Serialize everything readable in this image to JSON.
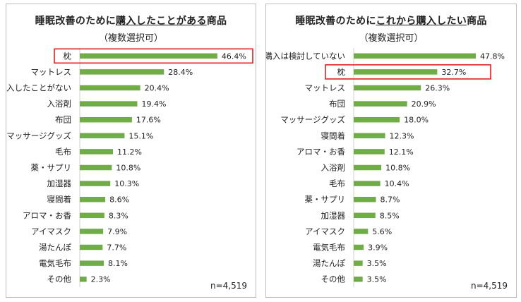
{
  "chart_data": [
    {
      "type": "bar",
      "orientation": "horizontal",
      "title_parts": [
        "睡眠改善のために",
        "購入したことがある",
        "商品"
      ],
      "subtitle": "（複数選択可）",
      "categories": [
        "枕",
        "マットレス",
        "購入したことがない",
        "入浴剤",
        "布団",
        "マッサージグッズ",
        "毛布",
        "薬・サプリ",
        "加湿器",
        "寝間着",
        "アロマ・お香",
        "アイマスク",
        "湯たんぽ",
        "電気毛布",
        "その他"
      ],
      "values": [
        46.4,
        28.4,
        20.4,
        19.4,
        17.6,
        15.1,
        11.2,
        10.8,
        10.3,
        8.6,
        8.3,
        7.9,
        7.7,
        8.1,
        2.3
      ],
      "value_labels": [
        "46.4%",
        "28.4%",
        "20.4%",
        "19.4%",
        "17.6%",
        "15.1%",
        "11.2%",
        "10.8%",
        "10.3%",
        "8.6%",
        "8.3%",
        "7.9%",
        "7.7%",
        "8.1%",
        "2.3%"
      ],
      "highlighted_category": "枕",
      "highlight_color": "#e02020",
      "bar_color": "#70ad47",
      "unit": "%",
      "n_label": "n=4,519",
      "grid": false
    },
    {
      "type": "bar",
      "orientation": "horizontal",
      "title_parts": [
        "睡眠改善のために",
        "これから購入したい",
        "商品"
      ],
      "subtitle": "（複数選択可）",
      "categories": [
        "購入は検討していない",
        "枕",
        "マットレス",
        "布団",
        "マッサージグッズ",
        "寝間着",
        "アロマ・お香",
        "入浴剤",
        "毛布",
        "薬・サプリ",
        "加湿器",
        "アイマスク",
        "電気毛布",
        "湯たんぽ",
        "その他"
      ],
      "values": [
        47.8,
        32.7,
        26.3,
        20.9,
        18.0,
        12.3,
        12.1,
        10.8,
        10.4,
        8.7,
        8.5,
        5.6,
        3.9,
        3.5,
        3.5
      ],
      "value_labels": [
        "47.8%",
        "32.7%",
        "26.3%",
        "20.9%",
        "18.0%",
        "12.3%",
        "12.1%",
        "10.8%",
        "10.4%",
        "8.7%",
        "8.5%",
        "5.6%",
        "3.9%",
        "3.5%",
        "3.5%"
      ],
      "highlighted_category": "枕",
      "highlight_color": "#e02020",
      "bar_color": "#70ad47",
      "unit": "%",
      "n_label": "n=4,519",
      "grid": false
    }
  ]
}
